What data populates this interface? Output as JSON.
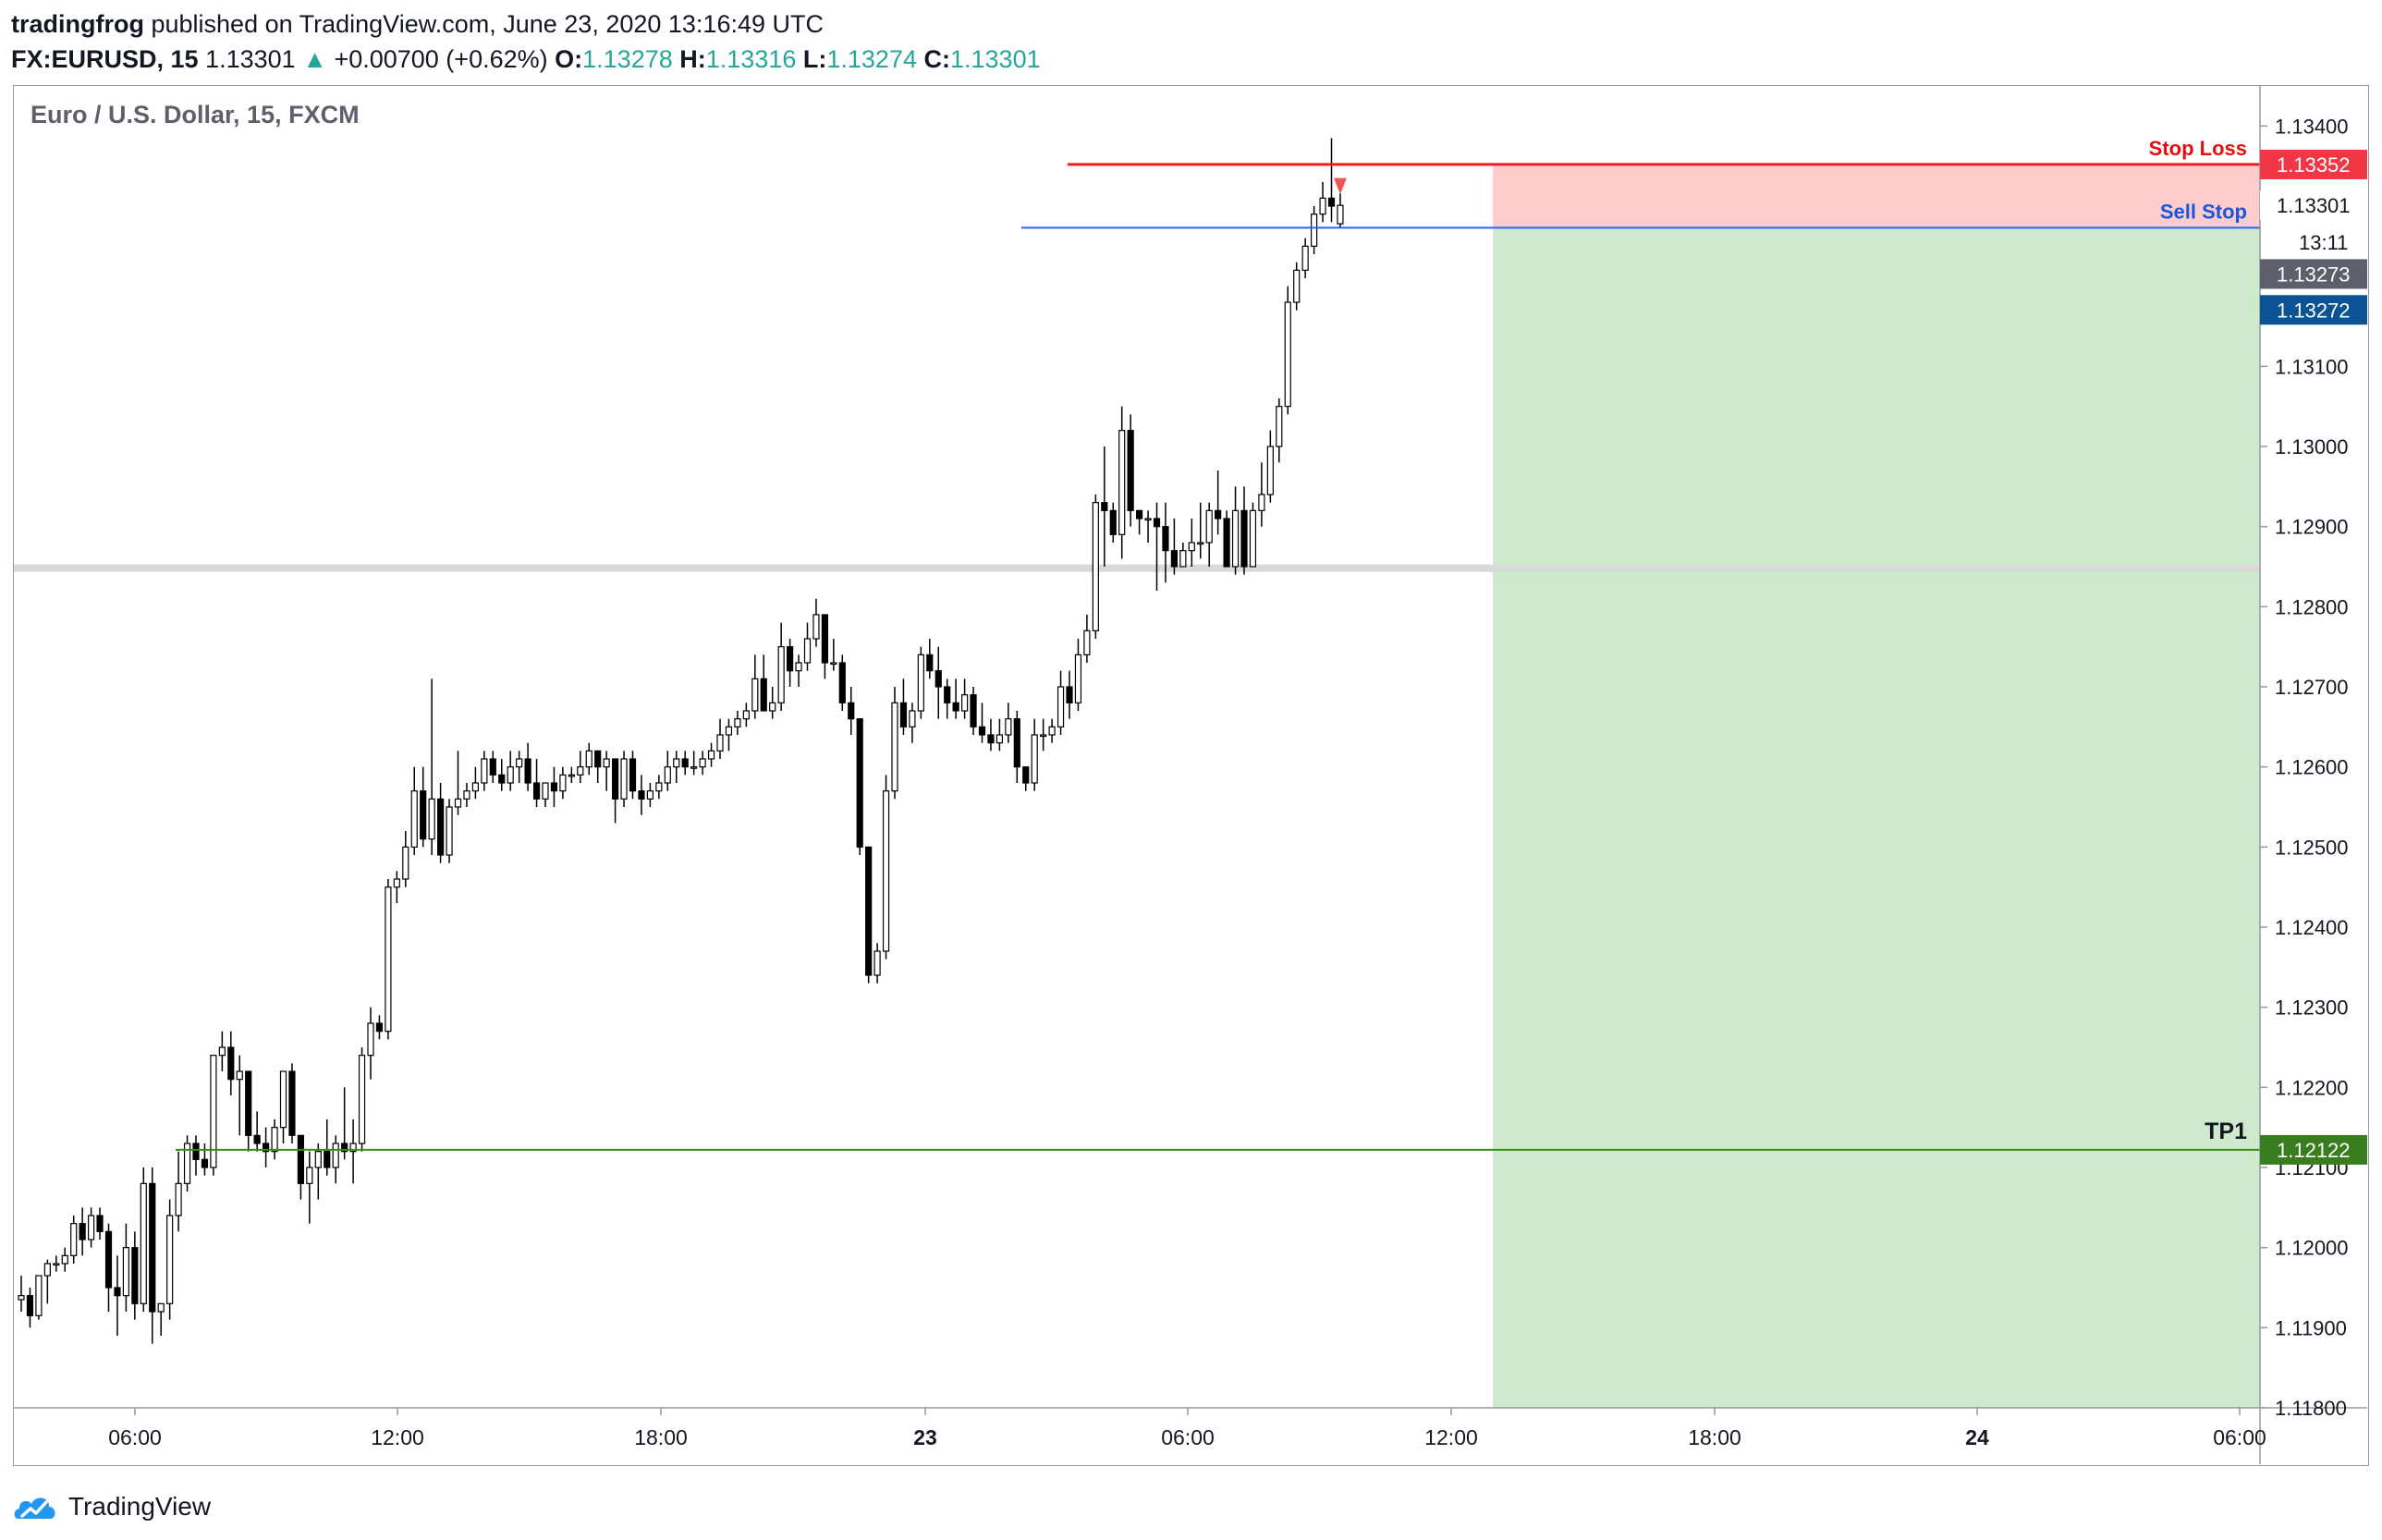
{
  "header": {
    "publisher": "tradingfrog",
    "published_text": "published on TradingView.com, June 23, 2020 13:16:49 UTC",
    "symbol": "FX:EURUSD, 15",
    "last": "1.13301",
    "change_arrow": "▲",
    "change": "+0.00700 (+0.62%)",
    "o_label": "O:",
    "o": "1.13278",
    "h_label": "H:",
    "h": "1.13316",
    "l_label": "L:",
    "l": "1.13274",
    "c_label": "C:",
    "c": "1.13301"
  },
  "footer": {
    "brand": "TradingView",
    "logo_icon": "tradingview-logo-icon"
  },
  "chart_data": {
    "type": "candlestick",
    "title": "Euro / U.S. Dollar, 15, FXCM",
    "ylim": [
      1.118,
      1.1345
    ],
    "yticks": [
      "1.13400",
      "1.13300",
      "1.13100",
      "1.13000",
      "1.12900",
      "1.12800",
      "1.12700",
      "1.12600",
      "1.12500",
      "1.12400",
      "1.12300",
      "1.12200",
      "1.12100",
      "1.12000",
      "1.11900",
      "1.11800"
    ],
    "xticks": [
      "06:00",
      "12:00",
      "18:00",
      "23",
      "06:00",
      "12:00",
      "18:00",
      "24",
      "06:00"
    ],
    "price_labels": [
      {
        "text": "1.13352",
        "value": 1.13352,
        "bg": "#f23645",
        "color": "#ffffff"
      },
      {
        "text": "1.13301",
        "value": 1.13301,
        "bg": "#ffffff",
        "color": "#131722",
        "sub": "13:11"
      },
      {
        "text": "1.13273",
        "value": 1.13273,
        "bg": "#5d606b",
        "color": "#ffffff"
      },
      {
        "text": "1.13272",
        "value": 1.13272,
        "bg": "#0b5394",
        "color": "#ffffff"
      },
      {
        "text": "1.12122",
        "value": 1.12122,
        "bg": "#3a7d1e",
        "color": "#ffffff"
      }
    ],
    "lines": [
      {
        "label": "Stop Loss",
        "value": 1.13352,
        "color": "#f21b1b",
        "label_color": "#e01010"
      },
      {
        "label": "Sell Stop",
        "value": 1.13273,
        "color": "#2962ff",
        "label_color": "#1a56db"
      },
      {
        "label": "TP1",
        "value": 1.12122,
        "color": "#3a8a1e",
        "label_color": "#131722"
      },
      {
        "label": "",
        "value": 1.12848,
        "color": "#d9d9d9"
      }
    ],
    "zones": [
      {
        "name": "risk",
        "from": 1.13273,
        "to": 1.13352,
        "color": "#fdcccc"
      },
      {
        "name": "reward",
        "from": 1.118,
        "to": 1.13273,
        "color": "#cdebcc"
      }
    ],
    "candles": [
      [
        1.11935,
        1.11965,
        1.1192,
        1.1194
      ],
      [
        1.1194,
        1.1195,
        1.119,
        1.11915
      ],
      [
        1.11915,
        1.11965,
        1.1191,
        1.11965
      ],
      [
        1.11965,
        1.11985,
        1.1193,
        1.1198
      ],
      [
        1.1198,
        1.1199,
        1.1197,
        1.1198
      ],
      [
        1.1198,
        1.12,
        1.1197,
        1.1199
      ],
      [
        1.1199,
        1.1204,
        1.1198,
        1.1203
      ],
      [
        1.1203,
        1.1205,
        1.1199,
        1.1201
      ],
      [
        1.1201,
        1.1205,
        1.12,
        1.1204
      ],
      [
        1.1204,
        1.1205,
        1.1201,
        1.1202
      ],
      [
        1.1202,
        1.1203,
        1.1192,
        1.1195
      ],
      [
        1.1195,
        1.1199,
        1.1189,
        1.1194
      ],
      [
        1.1194,
        1.1203,
        1.1192,
        1.12
      ],
      [
        1.12,
        1.1202,
        1.1191,
        1.1193
      ],
      [
        1.1193,
        1.121,
        1.1192,
        1.1208
      ],
      [
        1.1208,
        1.121,
        1.1188,
        1.1192
      ],
      [
        1.1192,
        1.1192,
        1.1189,
        1.1193
      ],
      [
        1.1193,
        1.1206,
        1.1191,
        1.1204
      ],
      [
        1.1204,
        1.1212,
        1.1202,
        1.1208
      ],
      [
        1.1208,
        1.1214,
        1.1207,
        1.1213
      ],
      [
        1.1213,
        1.1214,
        1.1209,
        1.1211
      ],
      [
        1.1211,
        1.1213,
        1.1209,
        1.121
      ],
      [
        1.121,
        1.1224,
        1.1209,
        1.1224
      ],
      [
        1.1224,
        1.1227,
        1.1222,
        1.1225
      ],
      [
        1.1225,
        1.1227,
        1.1219,
        1.1221
      ],
      [
        1.1221,
        1.1224,
        1.1214,
        1.1222
      ],
      [
        1.1222,
        1.1222,
        1.1212,
        1.1214
      ],
      [
        1.1214,
        1.1217,
        1.1212,
        1.1213
      ],
      [
        1.1213,
        1.1215,
        1.121,
        1.1212
      ],
      [
        1.1212,
        1.1216,
        1.1211,
        1.1215
      ],
      [
        1.1215,
        1.1222,
        1.1213,
        1.1222
      ],
      [
        1.1222,
        1.1223,
        1.1213,
        1.1214
      ],
      [
        1.1214,
        1.1214,
        1.1206,
        1.1208
      ],
      [
        1.1208,
        1.1212,
        1.1203,
        1.121
      ],
      [
        1.121,
        1.1213,
        1.1206,
        1.1212
      ],
      [
        1.1212,
        1.1216,
        1.1209,
        1.121
      ],
      [
        1.121,
        1.1214,
        1.1208,
        1.1213
      ],
      [
        1.1213,
        1.122,
        1.1211,
        1.1212
      ],
      [
        1.1212,
        1.1216,
        1.1208,
        1.1213
      ],
      [
        1.1213,
        1.1225,
        1.1212,
        1.1224
      ],
      [
        1.1224,
        1.123,
        1.1221,
        1.1228
      ],
      [
        1.1228,
        1.1229,
        1.1226,
        1.1227
      ],
      [
        1.1227,
        1.1246,
        1.1226,
        1.1245
      ],
      [
        1.1245,
        1.1247,
        1.1243,
        1.1246
      ],
      [
        1.1246,
        1.1252,
        1.1245,
        1.125
      ],
      [
        1.125,
        1.126,
        1.1249,
        1.1257
      ],
      [
        1.1257,
        1.126,
        1.125,
        1.1251
      ],
      [
        1.1251,
        1.1271,
        1.1249,
        1.1256
      ],
      [
        1.1256,
        1.1258,
        1.1248,
        1.1249
      ],
      [
        1.1249,
        1.1256,
        1.1248,
        1.1255
      ],
      [
        1.1255,
        1.1262,
        1.1254,
        1.1256
      ],
      [
        1.1256,
        1.1258,
        1.1255,
        1.1257
      ],
      [
        1.1257,
        1.126,
        1.1256,
        1.1258
      ],
      [
        1.1258,
        1.1262,
        1.1257,
        1.1261
      ],
      [
        1.1261,
        1.1262,
        1.1258,
        1.1259
      ],
      [
        1.1259,
        1.1261,
        1.1257,
        1.1258
      ],
      [
        1.1258,
        1.1262,
        1.1257,
        1.126
      ],
      [
        1.126,
        1.1262,
        1.1258,
        1.1261
      ],
      [
        1.1261,
        1.1263,
        1.1257,
        1.1258
      ],
      [
        1.1258,
        1.1261,
        1.1255,
        1.1256
      ],
      [
        1.1256,
        1.1258,
        1.1255,
        1.1258
      ],
      [
        1.1258,
        1.126,
        1.1255,
        1.1257
      ],
      [
        1.1257,
        1.126,
        1.1256,
        1.1259
      ],
      [
        1.1259,
        1.126,
        1.1258,
        1.1259
      ],
      [
        1.1259,
        1.1262,
        1.1258,
        1.126
      ],
      [
        1.126,
        1.1263,
        1.1259,
        1.1262
      ],
      [
        1.1262,
        1.1262,
        1.1258,
        1.126
      ],
      [
        1.126,
        1.1262,
        1.1257,
        1.1261
      ],
      [
        1.1261,
        1.1261,
        1.1253,
        1.1256
      ],
      [
        1.1256,
        1.1262,
        1.1255,
        1.1261
      ],
      [
        1.1261,
        1.1262,
        1.1256,
        1.1257
      ],
      [
        1.1257,
        1.1259,
        1.1254,
        1.1256
      ],
      [
        1.1256,
        1.1258,
        1.1255,
        1.1257
      ],
      [
        1.1257,
        1.1259,
        1.1256,
        1.1258
      ],
      [
        1.1258,
        1.1262,
        1.1257,
        1.126
      ],
      [
        1.126,
        1.1262,
        1.1258,
        1.1261
      ],
      [
        1.1261,
        1.1262,
        1.1259,
        1.126
      ],
      [
        1.126,
        1.1262,
        1.1259,
        1.126
      ],
      [
        1.126,
        1.1262,
        1.1259,
        1.1261
      ],
      [
        1.1261,
        1.1263,
        1.126,
        1.1262
      ],
      [
        1.1262,
        1.1266,
        1.1261,
        1.1264
      ],
      [
        1.1264,
        1.1266,
        1.1262,
        1.1265
      ],
      [
        1.1265,
        1.1267,
        1.1264,
        1.1266
      ],
      [
        1.1266,
        1.1268,
        1.1265,
        1.1267
      ],
      [
        1.1267,
        1.1274,
        1.1266,
        1.1271
      ],
      [
        1.1271,
        1.1274,
        1.1267,
        1.1267
      ],
      [
        1.1267,
        1.127,
        1.1266,
        1.1268
      ],
      [
        1.1268,
        1.1278,
        1.1267,
        1.1275
      ],
      [
        1.1275,
        1.1276,
        1.127,
        1.1272
      ],
      [
        1.1272,
        1.1274,
        1.127,
        1.1273
      ],
      [
        1.1273,
        1.1278,
        1.1272,
        1.1276
      ],
      [
        1.1276,
        1.1281,
        1.1275,
        1.1279
      ],
      [
        1.1279,
        1.1279,
        1.1271,
        1.1273
      ],
      [
        1.1273,
        1.1276,
        1.1272,
        1.1273
      ],
      [
        1.1273,
        1.1274,
        1.1267,
        1.1268
      ],
      [
        1.1268,
        1.127,
        1.1264,
        1.1266
      ],
      [
        1.1266,
        1.1266,
        1.1249,
        1.125
      ],
      [
        1.125,
        1.125,
        1.1233,
        1.1234
      ],
      [
        1.1234,
        1.1238,
        1.1233,
        1.1237
      ],
      [
        1.1237,
        1.1259,
        1.1236,
        1.1257
      ],
      [
        1.1257,
        1.127,
        1.1256,
        1.1268
      ],
      [
        1.1268,
        1.1271,
        1.1264,
        1.1265
      ],
      [
        1.1265,
        1.1268,
        1.1263,
        1.1267
      ],
      [
        1.1267,
        1.1275,
        1.1266,
        1.1274
      ],
      [
        1.1274,
        1.1276,
        1.1271,
        1.1272
      ],
      [
        1.1272,
        1.1275,
        1.1266,
        1.127
      ],
      [
        1.127,
        1.1271,
        1.1266,
        1.1268
      ],
      [
        1.1268,
        1.1271,
        1.1266,
        1.1267
      ],
      [
        1.1267,
        1.1271,
        1.1266,
        1.1269
      ],
      [
        1.1269,
        1.127,
        1.1264,
        1.1265
      ],
      [
        1.1265,
        1.1268,
        1.1263,
        1.1264
      ],
      [
        1.1264,
        1.1266,
        1.1262,
        1.1263
      ],
      [
        1.1263,
        1.1266,
        1.1262,
        1.1264
      ],
      [
        1.1264,
        1.1268,
        1.1263,
        1.1266
      ],
      [
        1.1266,
        1.1267,
        1.1258,
        1.126
      ],
      [
        1.126,
        1.126,
        1.1257,
        1.1258
      ],
      [
        1.1258,
        1.1266,
        1.1257,
        1.1264
      ],
      [
        1.1264,
        1.1266,
        1.1262,
        1.1264
      ],
      [
        1.1264,
        1.1266,
        1.1263,
        1.1265
      ],
      [
        1.1265,
        1.1272,
        1.1264,
        1.127
      ],
      [
        1.127,
        1.1272,
        1.1266,
        1.1268
      ],
      [
        1.1268,
        1.1276,
        1.1267,
        1.1274
      ],
      [
        1.1274,
        1.1279,
        1.1273,
        1.1277
      ],
      [
        1.1277,
        1.1294,
        1.1276,
        1.1293
      ],
      [
        1.1293,
        1.13,
        1.1285,
        1.1292
      ],
      [
        1.1292,
        1.1293,
        1.1288,
        1.1289
      ],
      [
        1.1289,
        1.1305,
        1.1286,
        1.1302
      ],
      [
        1.1302,
        1.1304,
        1.129,
        1.1292
      ],
      [
        1.1292,
        1.1292,
        1.1289,
        1.1291
      ],
      [
        1.1291,
        1.1292,
        1.1288,
        1.1291
      ],
      [
        1.1291,
        1.1293,
        1.1282,
        1.129
      ],
      [
        1.129,
        1.1293,
        1.1283,
        1.1287
      ],
      [
        1.1287,
        1.1291,
        1.1284,
        1.1285
      ],
      [
        1.1285,
        1.1288,
        1.1285,
        1.1287
      ],
      [
        1.1287,
        1.1291,
        1.1285,
        1.1288
      ],
      [
        1.1288,
        1.1293,
        1.1286,
        1.1288
      ],
      [
        1.1288,
        1.1293,
        1.1285,
        1.1292
      ],
      [
        1.1292,
        1.1297,
        1.1289,
        1.1291
      ],
      [
        1.1291,
        1.1292,
        1.1285,
        1.1285
      ],
      [
        1.1285,
        1.1295,
        1.1284,
        1.1292
      ],
      [
        1.1292,
        1.1295,
        1.1284,
        1.1285
      ],
      [
        1.1285,
        1.1293,
        1.1285,
        1.1292
      ],
      [
        1.1292,
        1.1298,
        1.129,
        1.1294
      ],
      [
        1.1294,
        1.1302,
        1.1293,
        1.13
      ],
      [
        1.13,
        1.1306,
        1.1298,
        1.1305
      ],
      [
        1.1305,
        1.132,
        1.1304,
        1.1318
      ],
      [
        1.1318,
        1.1323,
        1.1317,
        1.1322
      ],
      [
        1.1322,
        1.1326,
        1.1321,
        1.1325
      ],
      [
        1.1325,
        1.133,
        1.1324,
        1.1329
      ],
      [
        1.1329,
        1.1333,
        1.1328,
        1.1331
      ],
      [
        1.1331,
        1.13385,
        1.1328,
        1.133
      ],
      [
        1.13278,
        1.13316,
        1.13274,
        1.13301
      ]
    ]
  }
}
